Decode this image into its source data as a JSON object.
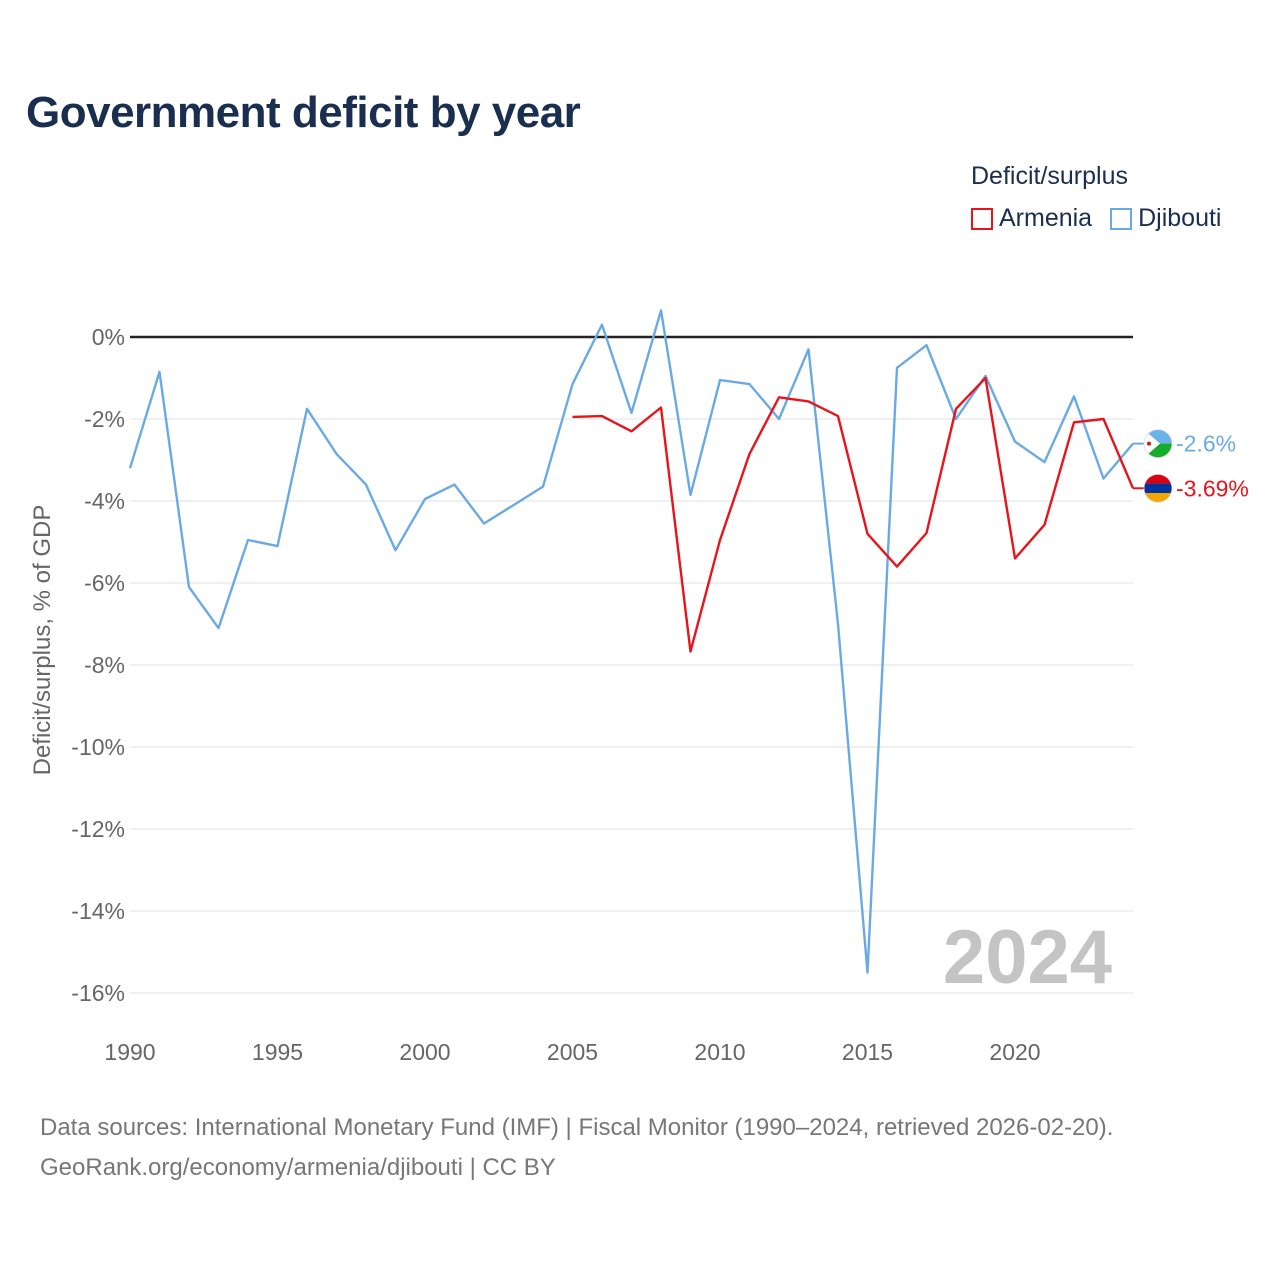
{
  "title": "Government deficit by year",
  "legend": {
    "title": "Deficit/surplus",
    "items": [
      {
        "label": "Armenia",
        "color": "#e8141c"
      },
      {
        "label": "Djibouti",
        "color": "#6aaae4"
      }
    ]
  },
  "sources": {
    "line1": "Data sources: International Monetary Fund (IMF) | Fiscal Monitor (1990–2024, retrieved 2026-02-20).",
    "line2": "GeoRank.org/economy/armenia/djibouti | CC BY"
  },
  "chart_data": {
    "type": "line",
    "title": "Government deficit by year",
    "xlabel": "",
    "ylabel": "Deficit/surplus, % of GDP",
    "xlim": [
      1990,
      2024
    ],
    "ylim": [
      -16.8,
      1.2
    ],
    "x_ticks": [
      1990,
      1995,
      2000,
      2005,
      2010,
      2015,
      2020
    ],
    "y_ticks": [
      0,
      -2,
      -4,
      -6,
      -8,
      -10,
      -12,
      -14,
      -16
    ],
    "y_tick_labels": [
      "0%",
      "-2%",
      "-4%",
      "-6%",
      "-8%",
      "-10%",
      "-12%",
      "-14%",
      "-16%"
    ],
    "watermark_year": "2024",
    "series": [
      {
        "name": "Djibouti",
        "color": "#6aaae4",
        "end_label": "-2.6%",
        "points": [
          [
            1990,
            -3.2
          ],
          [
            1991,
            -0.85
          ],
          [
            1992,
            -6.1
          ],
          [
            1993,
            -7.1
          ],
          [
            1994,
            -4.95
          ],
          [
            1995,
            -5.1
          ],
          [
            1996,
            -1.75
          ],
          [
            1997,
            -2.85
          ],
          [
            1998,
            -3.6
          ],
          [
            1999,
            -5.2
          ],
          [
            2000,
            -3.95
          ],
          [
            2001,
            -3.6
          ],
          [
            2002,
            -4.55
          ],
          [
            2003,
            -4.1
          ],
          [
            2004,
            -3.65
          ],
          [
            2005,
            -1.15
          ],
          [
            2006,
            0.3
          ],
          [
            2007,
            -1.85
          ],
          [
            2008,
            0.65
          ],
          [
            2009,
            -3.85
          ],
          [
            2010,
            -1.05
          ],
          [
            2011,
            -1.15
          ],
          [
            2012,
            -2.0
          ],
          [
            2013,
            -0.3
          ],
          [
            2014,
            -7.0
          ],
          [
            2015,
            -15.5
          ],
          [
            2016,
            -0.75
          ],
          [
            2017,
            -0.2
          ],
          [
            2018,
            -2.0
          ],
          [
            2019,
            -0.95
          ],
          [
            2020,
            -2.55
          ],
          [
            2021,
            -3.05
          ],
          [
            2022,
            -1.45
          ],
          [
            2023,
            -3.45
          ],
          [
            2024,
            -2.6
          ]
        ]
      },
      {
        "name": "Armenia",
        "color": "#e8141c",
        "end_label": "-3.69%",
        "points": [
          [
            2005,
            -1.95
          ],
          [
            2006,
            -1.93
          ],
          [
            2007,
            -2.3
          ],
          [
            2008,
            -1.72
          ],
          [
            2009,
            -7.67
          ],
          [
            2010,
            -4.95
          ],
          [
            2011,
            -2.85
          ],
          [
            2012,
            -1.47
          ],
          [
            2013,
            -1.57
          ],
          [
            2014,
            -1.93
          ],
          [
            2015,
            -4.8
          ],
          [
            2016,
            -5.6
          ],
          [
            2017,
            -4.78
          ],
          [
            2018,
            -1.75
          ],
          [
            2019,
            -1.0
          ],
          [
            2020,
            -5.4
          ],
          [
            2021,
            -4.58
          ],
          [
            2022,
            -2.08
          ],
          [
            2023,
            -2.0
          ],
          [
            2024,
            -3.69
          ]
        ]
      }
    ]
  }
}
